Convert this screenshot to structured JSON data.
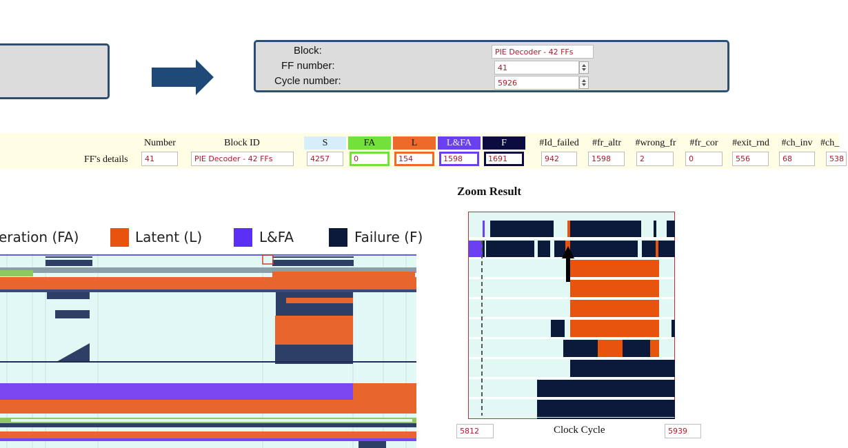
{
  "flow_arrow_icon": "arrow-right-icon",
  "block_panel": {
    "block_label": "Block:",
    "block_value": "PIE Decoder - 42 FFs",
    "ff_number_label": "FF number:",
    "ff_number_value": "41",
    "cycle_number_label": "Cycle number:",
    "cycle_number_value": "5926"
  },
  "ff_details": {
    "row_label": "FF's details",
    "columns": [
      {
        "header": "Number",
        "value": "41"
      },
      {
        "header": "Block ID",
        "value": "PIE Decoder - 42 FFs"
      },
      {
        "header": "S",
        "value": "4257"
      },
      {
        "header": "FA",
        "value": "0"
      },
      {
        "header": "L",
        "value": "154"
      },
      {
        "header": "L&FA",
        "value": "1598"
      },
      {
        "header": "F",
        "value": "1691"
      },
      {
        "header": "#Id_failed",
        "value": "942"
      },
      {
        "header": "#fr_altr",
        "value": "1598"
      },
      {
        "header": "#wrong_fr",
        "value": "2"
      },
      {
        "header": "#fr_cor",
        "value": "0"
      },
      {
        "header": "#exit_rnd",
        "value": "556"
      },
      {
        "header": "#ch_inv",
        "value": "68"
      },
      {
        "header": "#ch_",
        "value": "538"
      }
    ]
  },
  "legend": [
    {
      "label": "eration (FA)",
      "color": "#74e03a"
    },
    {
      "label": "Latent (L)",
      "color": "#e8540e"
    },
    {
      "label": "L&FA",
      "color": "#5b2ff5"
    },
    {
      "label": "Failure (F)",
      "color": "#0b1a3a"
    }
  ],
  "colors": {
    "silent": "#e2f8f4",
    "fault_activation": "#74e03a",
    "latent": "#e8540e",
    "latent_fa": "#5b2ff5",
    "failure": "#0b1a3a",
    "panel_border": "#2a4e74",
    "s_header": "#d5eefa",
    "fa_header": "#74e03a",
    "l_header": "#ee6a2a",
    "lfa_header": "#6a3ff0",
    "f_header": "#0b0b40"
  },
  "zoom": {
    "title": "Zoom Result",
    "x_start": "5812",
    "x_label": "Clock Cycle",
    "x_end": "5939",
    "pointer_icon": "arrow-up-icon"
  }
}
